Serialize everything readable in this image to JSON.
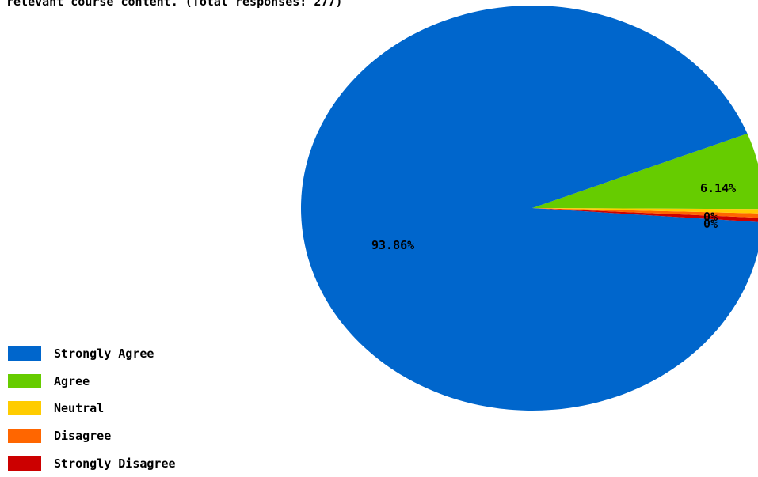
{
  "chart_data": {
    "type": "pie",
    "title": "relevant course content. (Total responses: 277)",
    "slices": [
      {
        "name": "Strongly Agree",
        "value": 93.86,
        "label": "93.86%",
        "color": "#0066CC"
      },
      {
        "name": "Agree",
        "value": 6.14,
        "label": "6.14%",
        "color": "#66CC00"
      },
      {
        "name": "Neutral",
        "value": 0,
        "label": "0%",
        "color": "#FFCC00"
      },
      {
        "name": "Disagree",
        "value": 0,
        "label": "0%",
        "color": "#FF6600"
      },
      {
        "name": "Strongly Disagree",
        "value": 0,
        "label": "0%",
        "color": "#CC0000"
      }
    ],
    "legend_position": "bottom-left"
  }
}
